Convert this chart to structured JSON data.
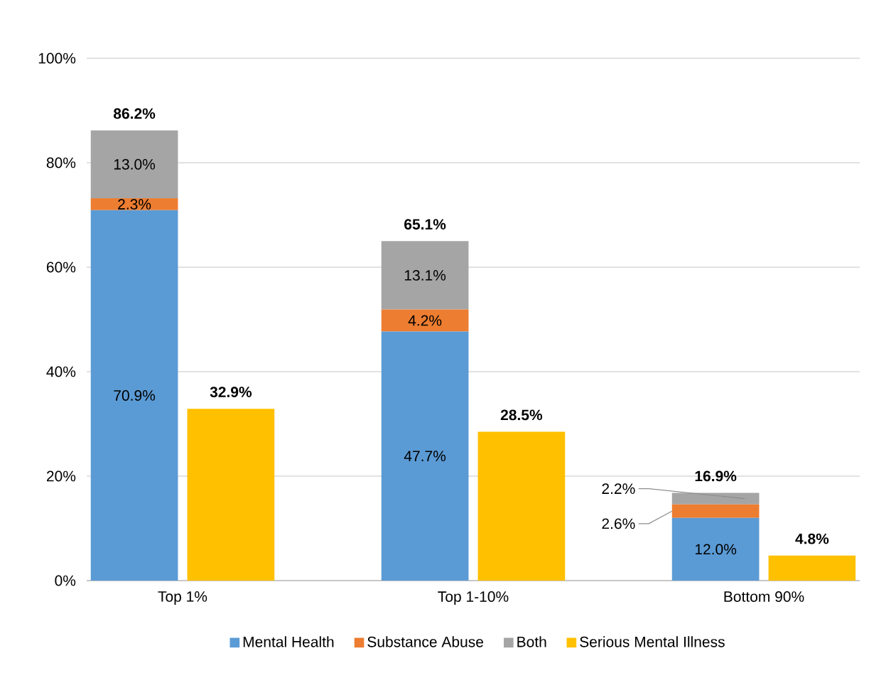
{
  "chart_data": [
    {
      "type": "bar",
      "stacked": true,
      "categories": [
        "Top 1%",
        "Top 1-10%",
        "Bottom 90%"
      ],
      "series": [
        {
          "name": "Mental Health",
          "color": "#5b9bd5",
          "values": [
            70.9,
            47.7,
            12.0
          ],
          "value_labels": [
            "70.9%",
            "47.7%",
            "12.0%"
          ]
        },
        {
          "name": "Substance Abuse",
          "color": "#ed7d31",
          "values": [
            2.3,
            4.2,
            2.6
          ],
          "value_labels": [
            "2.3%",
            "4.2%",
            "2.6%"
          ]
        },
        {
          "name": "Both",
          "color": "#a5a5a5",
          "values": [
            13.0,
            13.1,
            2.2
          ],
          "value_labels": [
            "13.0%",
            "13.1%",
            "2.2%"
          ]
        }
      ],
      "totals": [
        "86.2%",
        "65.1%",
        "16.9%"
      ],
      "ylim": [
        0,
        100
      ],
      "yticks": [
        {
          "value": 0,
          "label": "0%"
        },
        {
          "value": 20,
          "label": "20%"
        },
        {
          "value": 40,
          "label": "40%"
        },
        {
          "value": 60,
          "label": "60%"
        },
        {
          "value": 80,
          "label": "80%"
        },
        {
          "value": 100,
          "label": "100%"
        }
      ],
      "grid": "y",
      "legend": "bottom"
    },
    {
      "type": "bar",
      "categories": [
        null,
        null,
        null
      ],
      "series": [
        {
          "name": "Serious Mental Illness",
          "color": "#ffc000",
          "values": [
            32.9,
            28.5,
            4.8
          ],
          "value_labels": [
            "32.9%",
            "28.5%",
            "4.8%"
          ]
        }
      ],
      "ylim": [
        0,
        100
      ],
      "legend": "bottom"
    }
  ]
}
